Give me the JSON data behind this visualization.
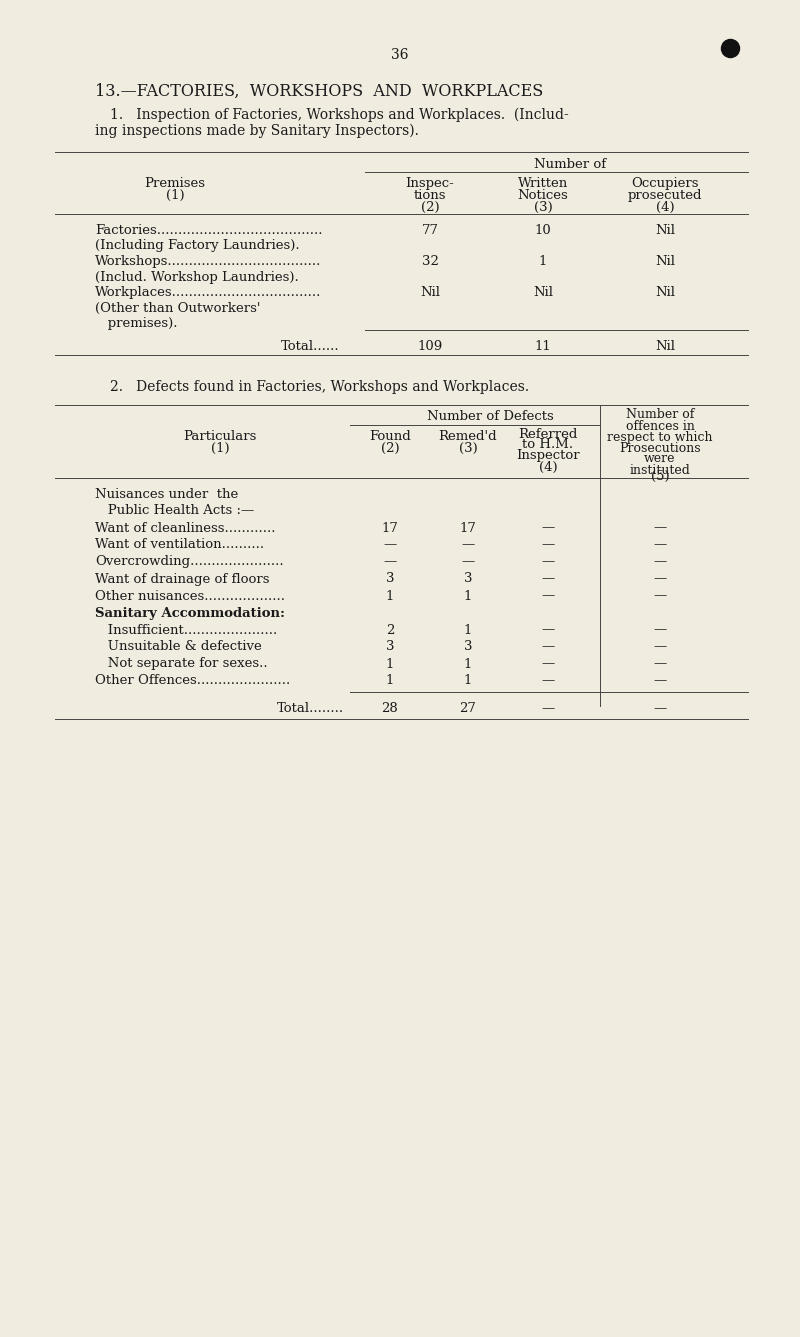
{
  "bg_color": "#f0ece0",
  "text_color": "#1a1a1a",
  "page_number": "36",
  "section_title": "13.—FACTORIES,  WORKSHOPS  AND  WORKPLACES",
  "sub1_line1": "1.   Inspection of Factories, Workshops and Workplaces.  (Includ-",
  "sub1_line2": "ing inspections made by Sanitary Inspectors).",
  "sub2_title": "2.   Defects found in Factories, Workshops and Workplaces.",
  "t1_rows": [
    [
      "Factories.......................................",
      "77",
      "10",
      "Nil"
    ],
    [
      "(Including Factory Laundries).",
      "",
      "",
      ""
    ],
    [
      "Workshops....................................",
      "32",
      "1",
      "Nil"
    ],
    [
      "(Includ. Workshop Laundries).",
      "",
      "",
      ""
    ],
    [
      "Workplaces...................................",
      "Nil",
      "Nil",
      "Nil"
    ],
    [
      "(Other than Outworkers'",
      "",
      "",
      ""
    ],
    [
      "   premises).",
      "",
      "",
      ""
    ]
  ],
  "t1_total": [
    "Total......",
    "109",
    "11",
    "Nil"
  ],
  "t2_rows": [
    [
      "Nuisances under  the",
      "",
      "",
      "",
      "",
      false
    ],
    [
      "   Public Health Acts :—",
      "",
      "",
      "",
      "",
      false
    ],
    [
      "Want of cleanliness............",
      "17",
      "17",
      "—",
      "—",
      false
    ],
    [
      "Want of ventilation..........",
      "—",
      "—",
      "—",
      "—",
      false
    ],
    [
      "Overcrowding......................",
      "—",
      "—",
      "—",
      "—",
      false
    ],
    [
      "Want of drainage of floors",
      "3",
      "3",
      "—",
      "—",
      false
    ],
    [
      "Other nuisances...................",
      "1",
      "1",
      "—",
      "—",
      false
    ],
    [
      "Sanitary Accommodation:",
      "",
      "",
      "",
      "",
      true
    ],
    [
      "   Insufficient......................",
      "2",
      "1",
      "—",
      "—",
      false
    ],
    [
      "   Unsuitable & defective",
      "3",
      "3",
      "—",
      "—",
      false
    ],
    [
      "   Not separate for sexes..",
      "1",
      "1",
      "—",
      "—",
      false
    ],
    [
      "Other Offences......................",
      "1",
      "1",
      "—",
      "—",
      false
    ]
  ],
  "t2_total": [
    "Total........",
    "28",
    "27",
    "—",
    "—"
  ]
}
